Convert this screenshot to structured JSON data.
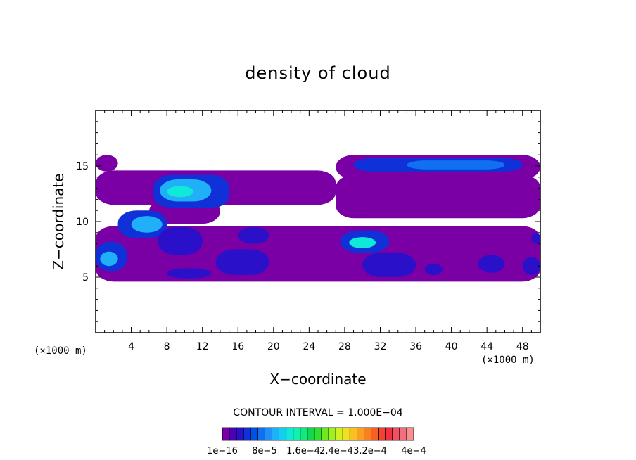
{
  "chart_data": {
    "type": "heatmap",
    "title": "density of cloud",
    "xlabel": "X−coordinate",
    "ylabel": "Z−coordinate",
    "x_unit": "(×1000 m)",
    "y_unit": "(×1000 m)",
    "xlim": [
      0,
      50
    ],
    "ylim": [
      0,
      20
    ],
    "x_ticks": [
      4,
      8,
      12,
      16,
      20,
      24,
      28,
      32,
      36,
      40,
      44,
      48
    ],
    "y_ticks": [
      5,
      10,
      15
    ],
    "contour_interval": "CONTOUR INTERVAL = 1.000E−04",
    "colorbar": {
      "labels": [
        "1e−16",
        "8e−5",
        "1.6e−4",
        "2.4e−4",
        "3.2e−4",
        "4e−4"
      ],
      "colors": [
        "#7a00a6",
        "#4c00b8",
        "#2a10c8",
        "#1030d8",
        "#0050e8",
        "#1070f0",
        "#2090f8",
        "#20b0f8",
        "#10d0f0",
        "#10e8d8",
        "#10f0b0",
        "#10e880",
        "#10d850",
        "#30e030",
        "#70e820",
        "#a0f020",
        "#d0f020",
        "#f0e020",
        "#f8c020",
        "#f8a020",
        "#f88020",
        "#f86020",
        "#f84030",
        "#f03040",
        "#f05060",
        "#f07080",
        "#f89090"
      ]
    },
    "regions": [
      {
        "level": 1,
        "x": [
          0,
          2.5
        ],
        "z": [
          14.5,
          16
        ]
      },
      {
        "level": 1,
        "x": [
          0,
          50
        ],
        "z": [
          4.6,
          9.6
        ]
      },
      {
        "level": 1,
        "x": [
          0,
          27
        ],
        "z": [
          11.5,
          14.6
        ]
      },
      {
        "level": 1,
        "x": [
          6,
          14
        ],
        "z": [
          9.8,
          12
        ]
      },
      {
        "level": 1,
        "x": [
          27,
          50
        ],
        "z": [
          10.3,
          14.2
        ]
      },
      {
        "level": 1,
        "x": [
          27,
          50
        ],
        "z": [
          13.8,
          16
        ]
      },
      {
        "level": 4,
        "x": [
          29,
          48
        ],
        "z": [
          14.5,
          15.7
        ]
      },
      {
        "level": 6,
        "x": [
          35,
          46
        ],
        "z": [
          14.7,
          15.5
        ]
      },
      {
        "level": 4,
        "x": [
          6.5,
          15
        ],
        "z": [
          11.2,
          14.2
        ]
      },
      {
        "level": 8,
        "x": [
          7.2,
          13
        ],
        "z": [
          11.8,
          13.8
        ]
      },
      {
        "level": 10,
        "x": [
          8,
          11
        ],
        "z": [
          12.2,
          13.2
        ]
      },
      {
        "level": 4,
        "x": [
          2.5,
          8
        ],
        "z": [
          8.5,
          11
        ]
      },
      {
        "level": 8,
        "x": [
          4,
          7.5
        ],
        "z": [
          9,
          10.5
        ]
      },
      {
        "level": 4,
        "x": [
          0,
          3.5
        ],
        "z": [
          5.5,
          8.2
        ]
      },
      {
        "level": 8,
        "x": [
          0.5,
          2.5
        ],
        "z": [
          6,
          7.3
        ]
      },
      {
        "level": 3,
        "x": [
          7,
          12
        ],
        "z": [
          7,
          9.5
        ]
      },
      {
        "level": 3,
        "x": [
          13.5,
          19.5
        ],
        "z": [
          5.2,
          7.5
        ]
      },
      {
        "level": 3,
        "x": [
          16,
          19.5
        ],
        "z": [
          8,
          9.5
        ]
      },
      {
        "level": 3,
        "x": [
          8,
          13
        ],
        "z": [
          4.9,
          5.8
        ]
      },
      {
        "level": 4,
        "x": [
          27.5,
          33
        ],
        "z": [
          7.2,
          9.2
        ]
      },
      {
        "level": 10,
        "x": [
          28.5,
          31.5
        ],
        "z": [
          7.6,
          8.6
        ]
      },
      {
        "level": 3,
        "x": [
          30,
          36
        ],
        "z": [
          5,
          7.2
        ]
      },
      {
        "level": 3,
        "x": [
          37,
          39
        ],
        "z": [
          5.2,
          6.2
        ]
      },
      {
        "level": 3,
        "x": [
          43,
          46
        ],
        "z": [
          5.4,
          7
        ]
      },
      {
        "level": 3,
        "x": [
          48,
          50
        ],
        "z": [
          5.2,
          6.8
        ]
      },
      {
        "level": 3,
        "x": [
          49,
          50
        ],
        "z": [
          8,
          9
        ]
      }
    ]
  }
}
